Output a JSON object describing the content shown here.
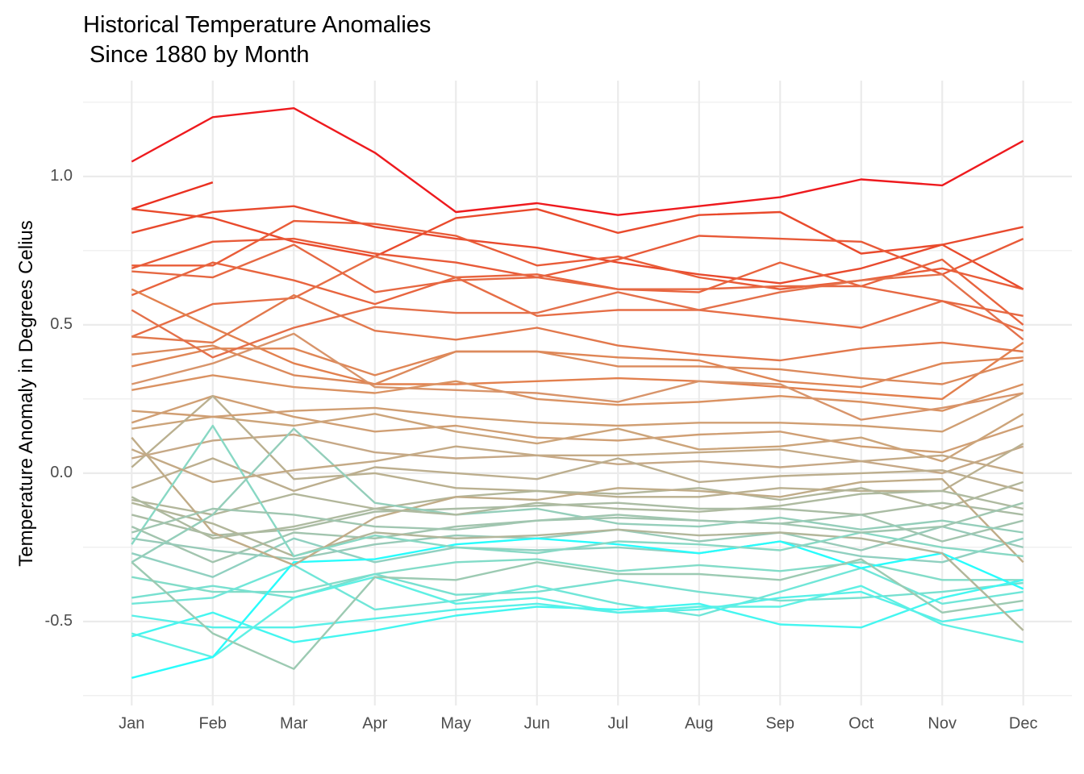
{
  "chart_data": {
    "type": "line",
    "title": [
      "Historical Temperature Anomalies",
      " Since 1880 by Month"
    ],
    "y_label": "Temperature Anomaly in Degrees Celius",
    "categories": [
      "Jan",
      "Feb",
      "Mar",
      "Apr",
      "May",
      "Jun",
      "Jul",
      "Aug",
      "Sep",
      "Oct",
      "Nov",
      "Dec"
    ],
    "ylim": [
      -0.783,
      1.323
    ],
    "yticks": [
      -0.5,
      {
        "value": 0,
        "label": "0.0"
      },
      0.5,
      {
        "value": 1,
        "label": "1.0"
      }
    ],
    "yminor": [
      -0.75,
      -0.25,
      0.25,
      0.75,
      1.25
    ],
    "grid": true,
    "series": [
      {
        "color": "#ee1a1e",
        "values": [
          1.05,
          1.2,
          1.23,
          1.08,
          0.88,
          0.91,
          0.87,
          0.9,
          0.93,
          0.99,
          0.97,
          1.12
        ]
      },
      {
        "color": "#ea3020",
        "values": [
          0.89,
          0.98,
          null,
          null,
          null,
          null,
          null,
          null,
          null,
          null,
          null,
          null
        ]
      },
      {
        "color": "#e84a2e",
        "values": [
          0.81,
          0.88,
          0.9,
          0.83,
          0.79,
          0.76,
          0.71,
          0.67,
          0.64,
          0.69,
          0.77,
          0.83
        ]
      },
      {
        "color": "#e94a2c",
        "values": [
          0.89,
          0.86,
          0.78,
          0.73,
          0.86,
          0.89,
          0.81,
          0.87,
          0.88,
          0.74,
          0.77,
          0.62
        ]
      },
      {
        "color": "#e85a38",
        "values": [
          0.69,
          0.78,
          0.79,
          0.74,
          0.71,
          0.66,
          0.72,
          0.8,
          0.79,
          0.78,
          0.67,
          0.79
        ]
      },
      {
        "color": "#e95c38",
        "values": [
          0.7,
          0.7,
          0.85,
          0.84,
          0.8,
          0.7,
          0.73,
          0.66,
          0.62,
          0.65,
          0.69,
          0.62
        ]
      },
      {
        "color": "#e8643e",
        "values": [
          0.6,
          0.71,
          0.65,
          0.57,
          0.66,
          0.67,
          0.62,
          0.61,
          0.71,
          0.63,
          0.72,
          0.5
        ]
      },
      {
        "color": "#e66e46",
        "values": [
          0.46,
          0.57,
          0.59,
          0.73,
          0.66,
          0.53,
          0.55,
          0.55,
          0.52,
          0.49,
          0.58,
          0.48
        ]
      },
      {
        "color": "#e2804e",
        "values": [
          0.62,
          0.49,
          0.37,
          0.3,
          0.3,
          0.31,
          0.32,
          0.31,
          0.29,
          0.27,
          0.25,
          0.44
        ]
      },
      {
        "color": "#e2784c",
        "values": [
          0.46,
          0.44,
          0.6,
          0.48,
          0.45,
          0.49,
          0.43,
          0.4,
          0.38,
          0.42,
          0.44,
          0.41
        ]
      },
      {
        "color": "#df8656",
        "values": [
          0.36,
          0.42,
          0.42,
          0.33,
          0.41,
          0.41,
          0.39,
          0.38,
          0.31,
          0.29,
          0.37,
          0.39
        ]
      },
      {
        "color": "#da9262",
        "values": [
          0.28,
          0.33,
          0.29,
          0.27,
          0.31,
          0.25,
          0.23,
          0.24,
          0.26,
          0.24,
          0.21,
          0.3
        ]
      },
      {
        "color": "#d8946a",
        "values": [
          0.3,
          0.37,
          0.47,
          0.29,
          0.28,
          0.27,
          0.24,
          0.31,
          0.3,
          0.18,
          0.22,
          0.27
        ]
      },
      {
        "color": "#d09f74",
        "values": [
          0.17,
          0.26,
          0.19,
          0.14,
          0.16,
          0.12,
          0.11,
          0.13,
          0.14,
          0.09,
          0.07,
          0.16
        ]
      },
      {
        "color": "#cca47a",
        "values": [
          0.15,
          0.19,
          0.16,
          0.2,
          0.14,
          0.1,
          0.15,
          0.08,
          0.09,
          0.12,
          0.04,
          0.2
        ]
      },
      {
        "color": "#c6a886",
        "values": [
          0.05,
          0.11,
          0.13,
          0.07,
          0.05,
          0.06,
          0.03,
          0.04,
          0.02,
          0.04,
          0.0,
          0.09
        ]
      },
      {
        "color": "#bcae8e",
        "values": [
          -0.05,
          0.05,
          -0.06,
          0.02,
          0.0,
          -0.02,
          0.05,
          -0.03,
          -0.01,
          0.0,
          0.01,
          -0.06
        ]
      },
      {
        "color": "#bab090",
        "values": [
          0.02,
          0.26,
          -0.02,
          0.0,
          -0.05,
          -0.06,
          -0.08,
          -0.08,
          -0.05,
          -0.06,
          -0.06,
          0.1
        ]
      },
      {
        "color": "#b2b69a",
        "values": [
          -0.09,
          -0.14,
          -0.07,
          -0.12,
          -0.08,
          -0.06,
          -0.07,
          -0.05,
          -0.09,
          -0.05,
          -0.12,
          -0.03
        ]
      },
      {
        "color": "#aabca4",
        "values": [
          -0.14,
          -0.21,
          -0.19,
          -0.13,
          -0.12,
          -0.11,
          -0.1,
          -0.12,
          -0.12,
          -0.14,
          -0.1,
          -0.14
        ]
      },
      {
        "color": "#a2c4ae",
        "values": [
          -0.18,
          -0.3,
          -0.2,
          -0.22,
          -0.18,
          -0.16,
          -0.15,
          -0.16,
          -0.17,
          -0.14,
          -0.23,
          -0.16
        ]
      },
      {
        "color": "#98cab8",
        "values": [
          -0.22,
          -0.26,
          -0.29,
          -0.24,
          -0.21,
          -0.22,
          -0.19,
          -0.23,
          -0.2,
          -0.26,
          -0.18,
          -0.25
        ]
      },
      {
        "color": "#90d0c0",
        "values": [
          -0.27,
          -0.35,
          -0.22,
          -0.3,
          -0.25,
          -0.26,
          -0.25,
          -0.27,
          -0.23,
          -0.28,
          -0.3,
          -0.22
        ]
      },
      {
        "color": "#82dcc8",
        "values": [
          -0.35,
          -0.4,
          -0.4,
          -0.34,
          -0.3,
          -0.29,
          -0.33,
          -0.31,
          -0.33,
          -0.3,
          -0.36,
          -0.36
        ]
      },
      {
        "color": "#78e0d0",
        "values": [
          -0.42,
          -0.38,
          -0.42,
          -0.34,
          -0.41,
          -0.4,
          -0.36,
          -0.4,
          -0.43,
          -0.42,
          -0.4,
          -0.37
        ]
      },
      {
        "color": "#70e6d8",
        "values": [
          -0.44,
          -0.42,
          -0.31,
          -0.46,
          -0.43,
          -0.38,
          -0.44,
          -0.48,
          -0.4,
          -0.32,
          -0.44,
          -0.4
        ]
      },
      {
        "color": "#5ef0e4",
        "values": [
          -0.54,
          -0.62,
          -0.42,
          -0.35,
          -0.44,
          -0.42,
          -0.47,
          -0.45,
          -0.45,
          -0.38,
          -0.51,
          -0.57
        ]
      },
      {
        "color": "#28fcfc",
        "values": [
          -0.69,
          -0.62,
          -0.3,
          -0.29,
          -0.24,
          -0.22,
          -0.24,
          -0.27,
          -0.23,
          -0.32,
          -0.27,
          -0.39
        ]
      },
      {
        "color": "#44f6f0",
        "values": [
          -0.55,
          -0.47,
          -0.57,
          -0.53,
          -0.48,
          -0.45,
          -0.46,
          -0.44,
          -0.51,
          -0.52,
          -0.42,
          -0.36
        ]
      },
      {
        "color": "#58f0e8",
        "values": [
          -0.48,
          -0.52,
          -0.52,
          -0.49,
          -0.46,
          -0.44,
          -0.47,
          -0.46,
          -0.42,
          -0.4,
          -0.5,
          -0.46
        ]
      },
      {
        "color": "#9ccab2",
        "values": [
          -0.3,
          -0.54,
          -0.66,
          -0.35,
          -0.36,
          -0.3,
          -0.34,
          -0.34,
          -0.36,
          -0.29,
          -0.47,
          -0.43
        ]
      },
      {
        "color": "#b2b69a",
        "values": [
          -0.1,
          -0.17,
          -0.28,
          -0.2,
          -0.22,
          -0.21,
          -0.19,
          -0.21,
          -0.2,
          -0.22,
          -0.27,
          -0.53
        ]
      },
      {
        "color": "#c0ac88",
        "values": [
          0.12,
          -0.2,
          -0.31,
          -0.15,
          -0.08,
          -0.09,
          -0.05,
          -0.06,
          -0.08,
          -0.03,
          -0.02,
          -0.3
        ]
      },
      {
        "color": "#88d8c4",
        "values": [
          -0.24,
          0.16,
          -0.28,
          -0.21,
          -0.25,
          -0.27,
          -0.23,
          -0.24,
          -0.26,
          -0.2,
          -0.25,
          -0.28
        ]
      },
      {
        "color": "#94ceba",
        "values": [
          -0.3,
          -0.14,
          0.15,
          -0.1,
          -0.14,
          -0.12,
          -0.17,
          -0.18,
          -0.15,
          -0.19,
          -0.16,
          -0.2
        ]
      },
      {
        "color": "#c4aa86",
        "values": [
          0.08,
          -0.03,
          0.01,
          0.04,
          0.09,
          0.06,
          0.06,
          0.07,
          0.08,
          0.04,
          0.06,
          0.0
        ]
      },
      {
        "color": "#d09e72",
        "values": [
          0.21,
          0.19,
          0.21,
          0.22,
          0.19,
          0.17,
          0.16,
          0.17,
          0.17,
          0.16,
          0.14,
          0.27
        ]
      },
      {
        "color": "#dc8a5c",
        "values": [
          0.4,
          0.43,
          0.33,
          0.3,
          0.41,
          0.41,
          0.36,
          0.36,
          0.35,
          0.32,
          0.3,
          0.38
        ]
      },
      {
        "color": "#e4704a",
        "values": [
          0.55,
          0.39,
          0.49,
          0.56,
          0.54,
          0.54,
          0.61,
          0.55,
          0.61,
          0.65,
          0.67,
          0.45
        ]
      },
      {
        "color": "#e66842",
        "values": [
          0.68,
          0.66,
          0.77,
          0.61,
          0.65,
          0.66,
          0.62,
          0.62,
          0.63,
          0.63,
          0.58,
          0.53
        ]
      },
      {
        "color": "#aebaa0",
        "values": [
          -0.08,
          -0.22,
          -0.18,
          -0.12,
          -0.14,
          -0.1,
          -0.12,
          -0.13,
          -0.11,
          -0.07,
          -0.06,
          -0.12
        ]
      },
      {
        "color": "#a0c6b0",
        "values": [
          -0.2,
          -0.12,
          -0.14,
          -0.18,
          -0.19,
          -0.16,
          -0.14,
          -0.16,
          -0.17,
          -0.2,
          -0.18,
          -0.1
        ]
      }
    ]
  }
}
